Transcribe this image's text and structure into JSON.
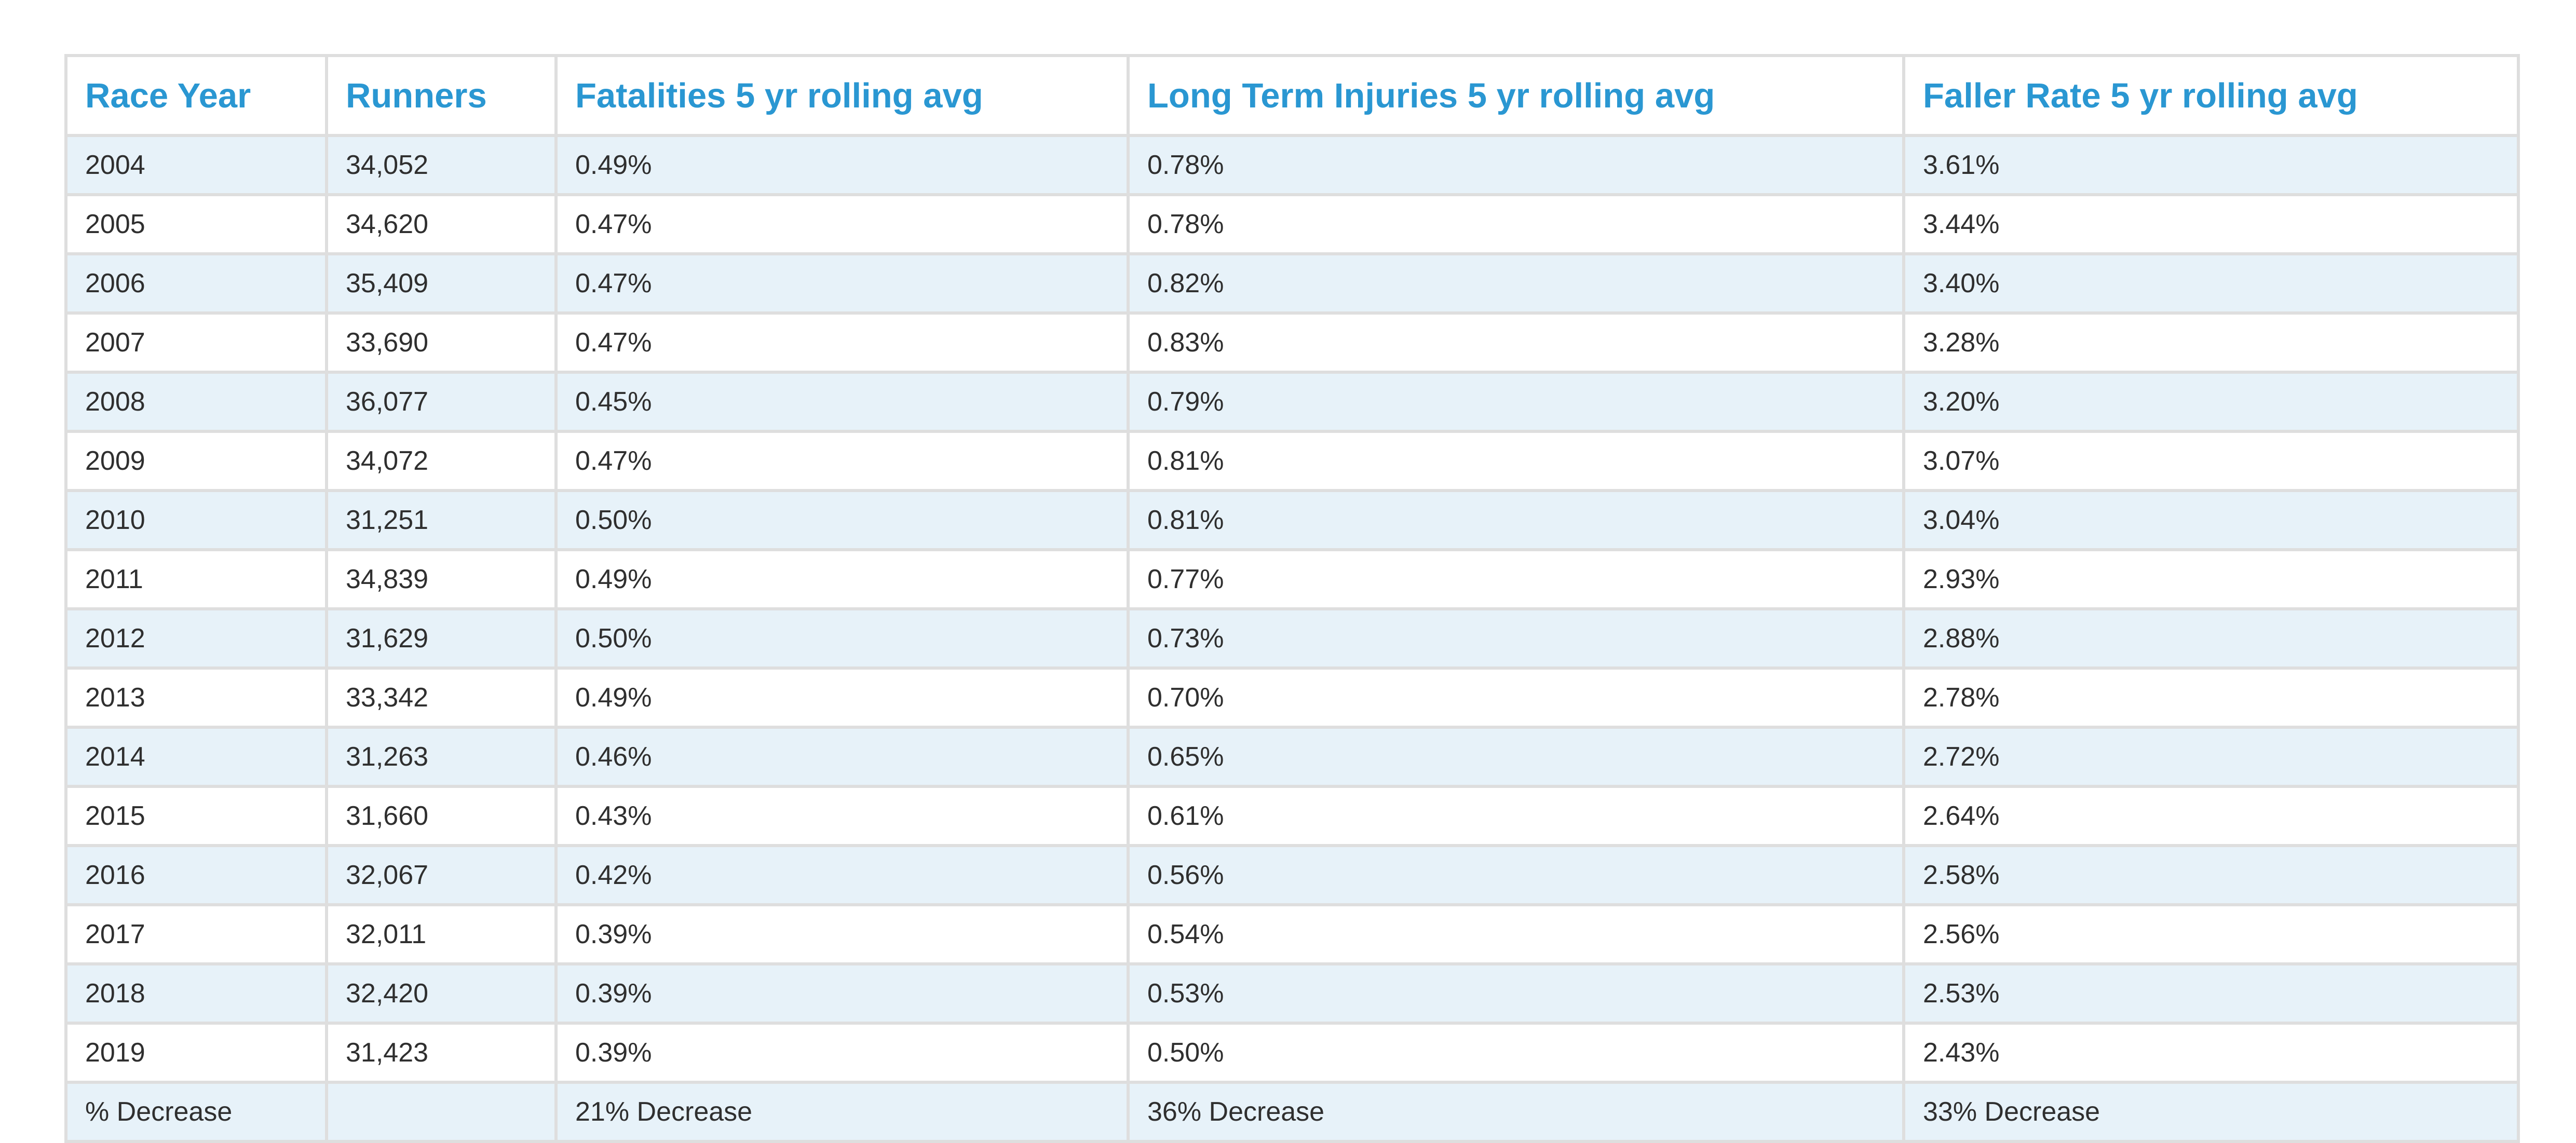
{
  "chart_data": {
    "type": "table",
    "columns": [
      "Race Year",
      "Runners",
      "Fatalities 5 yr rolling avg",
      "Long Term Injuries 5 yr rolling avg",
      "Faller Rate 5 yr rolling avg"
    ],
    "rows": [
      [
        "2004",
        "34,052",
        "0.49%",
        "0.78%",
        "3.61%"
      ],
      [
        "2005",
        "34,620",
        "0.47%",
        "0.78%",
        "3.44%"
      ],
      [
        "2006",
        "35,409",
        "0.47%",
        "0.82%",
        "3.40%"
      ],
      [
        "2007",
        "33,690",
        "0.47%",
        "0.83%",
        "3.28%"
      ],
      [
        "2008",
        "36,077",
        "0.45%",
        "0.79%",
        "3.20%"
      ],
      [
        "2009",
        "34,072",
        "0.47%",
        "0.81%",
        "3.07%"
      ],
      [
        "2010",
        "31,251",
        "0.50%",
        "0.81%",
        "3.04%"
      ],
      [
        "2011",
        "34,839",
        "0.49%",
        "0.77%",
        "2.93%"
      ],
      [
        "2012",
        "31,629",
        "0.50%",
        "0.73%",
        "2.88%"
      ],
      [
        "2013",
        "33,342",
        "0.49%",
        "0.70%",
        "2.78%"
      ],
      [
        "2014",
        "31,263",
        "0.46%",
        "0.65%",
        "2.72%"
      ],
      [
        "2015",
        "31,660",
        "0.43%",
        "0.61%",
        "2.64%"
      ],
      [
        "2016",
        "32,067",
        "0.42%",
        "0.56%",
        "2.58%"
      ],
      [
        "2017",
        "32,011",
        "0.39%",
        "0.54%",
        "2.56%"
      ],
      [
        "2018",
        "32,420",
        "0.39%",
        "0.53%",
        "2.53%"
      ],
      [
        "2019",
        "31,423",
        "0.39%",
        "0.50%",
        "2.43%"
      ]
    ],
    "summary_row": [
      "% Decrease",
      "",
      "21% Decrease",
      "36% Decrease",
      "33% Decrease"
    ]
  },
  "colors": {
    "header_text": "#2a97d2",
    "body_text": "#2f2f2f",
    "stripe": "#e7f2f9",
    "border": "#dedede"
  }
}
